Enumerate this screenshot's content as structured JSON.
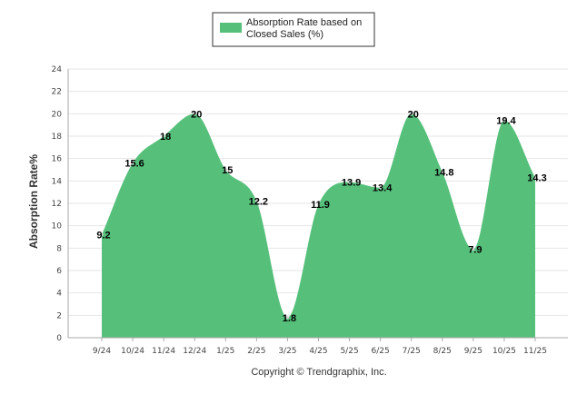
{
  "chart_data": {
    "type": "area",
    "categories": [
      "9/24",
      "10/24",
      "11/24",
      "12/24",
      "1/25",
      "2/25",
      "3/25",
      "4/25",
      "5/25",
      "6/25",
      "7/25",
      "8/25",
      "9/25",
      "10/25",
      "11/25"
    ],
    "series": [
      {
        "name": "Absorption Rate based on Closed Sales (%)",
        "values": [
          9.2,
          15.6,
          18,
          20,
          15,
          12.2,
          1.8,
          11.9,
          13.9,
          13.4,
          20,
          14.8,
          7.9,
          19.4,
          14.3
        ],
        "color": "#56c07b"
      }
    ],
    "data_labels": [
      "9.2",
      "15.6",
      "18",
      "20",
      "15",
      "12.2",
      "1.8",
      "11.9",
      "13.9",
      "13.4",
      "20",
      "14.8",
      "7.9",
      "19.4",
      "14.3"
    ],
    "ylabel": "Absorption Rate%",
    "xlabel": "",
    "ylim": [
      0,
      24
    ],
    "yticks": [
      "0",
      "2",
      "4",
      "6",
      "8",
      "10",
      "12",
      "14",
      "16",
      "18",
      "20",
      "22",
      "24"
    ],
    "grid": true,
    "legend_position": "top-center",
    "legend_label_line1": "Absorption Rate based on",
    "legend_label_line2": "Closed Sales (%)"
  },
  "footer": {
    "copyright": "Copyright © Trendgraphix, Inc."
  }
}
